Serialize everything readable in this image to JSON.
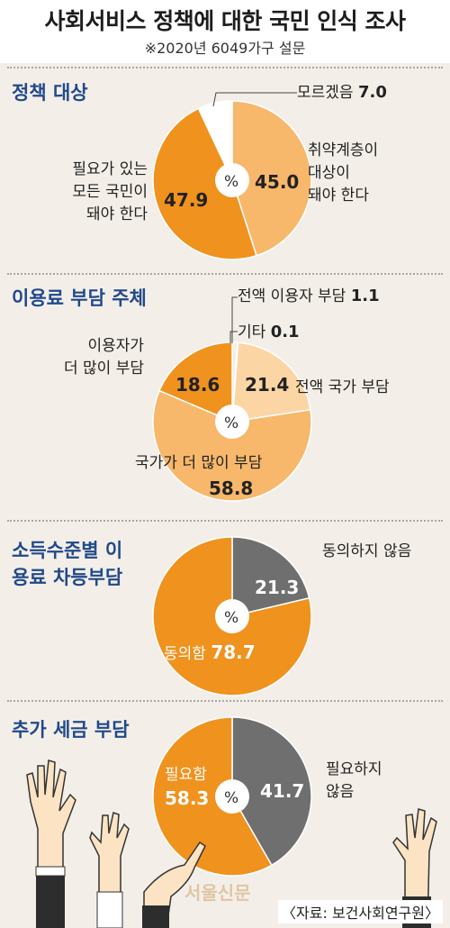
{
  "title": "사회서비스 정책에 대한 국민 인식 조사",
  "subtitle": "※2020년 6049가구 설문",
  "center_label": "%",
  "source": "〈자료: 보건사회연구원〉",
  "watermark": "서울신문",
  "colors": {
    "dark_orange": "#f0921e",
    "light_orange": "#f7b86b",
    "pale_orange": "#fbd6a4",
    "gray": "#6f6f6f",
    "white": "#ffffff",
    "title_blue": "#21498b"
  },
  "chart_data": [
    {
      "type": "pie",
      "title": "정책 대상",
      "slices": [
        {
          "label": "취약계층이 대상이 돼야 한다",
          "value": 45.0,
          "color": "#f7b86b"
        },
        {
          "label": "필요가 있는 모든 국민이 돼야 한다",
          "value": 47.9,
          "color": "#f0921e"
        },
        {
          "label": "모르겠음",
          "value": 7.0,
          "color": "#ffffff"
        }
      ],
      "value_texts": [
        "45.0",
        "47.9",
        "7.0"
      ],
      "label_texts": [
        "취약계층이\n대상이\n돼야 한다",
        "필요가 있는\n모든 국민이\n돼야 한다",
        "모르겠음"
      ]
    },
    {
      "type": "pie",
      "title": "이용료 부담 주체",
      "slices": [
        {
          "label": "전액 이용자 부담",
          "value": 1.1,
          "color": "#f3efe8"
        },
        {
          "label": "기타",
          "value": 0.1,
          "color": "#ffffff"
        },
        {
          "label": "전액 국가 부담",
          "value": 21.4,
          "color": "#fbd6a4"
        },
        {
          "label": "국가가 더 많이 부담",
          "value": 58.8,
          "color": "#f7b86b"
        },
        {
          "label": "이용자가 더 많이 부담",
          "value": 18.6,
          "color": "#f0921e"
        }
      ],
      "value_texts": [
        "1.1",
        "0.1",
        "21.4",
        "58.8",
        "18.6"
      ],
      "label_texts": [
        "전액 이용자 부담",
        "기타",
        "전액 국가 부담",
        "국가가 더 많이 부담",
        "이용자가\n더 많이 부담"
      ]
    },
    {
      "type": "pie",
      "title": "소득수준별 이용료 차등부담",
      "slices": [
        {
          "label": "동의하지 않음",
          "value": 21.3,
          "color": "#6f6f6f"
        },
        {
          "label": "동의함",
          "value": 78.7,
          "color": "#f0921e"
        }
      ],
      "value_texts": [
        "21.3",
        "78.7"
      ],
      "label_texts": [
        "동의하지 않음",
        "동의함"
      ]
    },
    {
      "type": "pie",
      "title": "추가 세금 부담",
      "slices": [
        {
          "label": "필요하지 않음",
          "value": 41.7,
          "color": "#6f6f6f"
        },
        {
          "label": "필요함",
          "value": 58.3,
          "color": "#f0921e"
        }
      ],
      "value_texts": [
        "41.7",
        "58.3"
      ],
      "label_texts": [
        "필요하지\n않음",
        "필요함"
      ]
    }
  ]
}
